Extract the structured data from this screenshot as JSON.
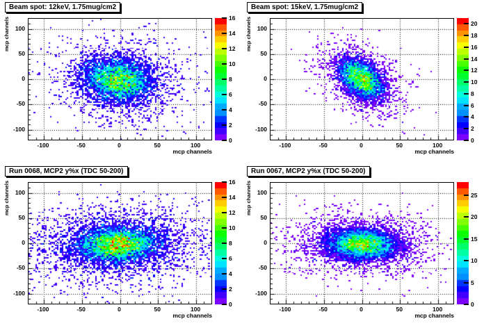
{
  "palette": [
    "#7B00FF",
    "#4100FF",
    "#0600FF",
    "#0034FF",
    "#0090FF",
    "#00AAFF",
    "#00E4FF",
    "#00FFDF",
    "#00FFA4",
    "#00FF6A",
    "#00FF2F",
    "#0BFF00",
    "#46FF00",
    "#81FF00",
    "#BBFF00",
    "#F6FF00",
    "#FFCD00",
    "#FF9300",
    "#FF5800",
    "#FF0000"
  ],
  "grid_color": "#000000",
  "frame_color": "#000000",
  "chart_data": [
    {
      "type": "heatmap",
      "title": "Beam spot: 12keV, 1.75mug/cm2",
      "xlabel": "mcp channels",
      "ylabel": "mcp channels",
      "xlim": [
        -120,
        120
      ],
      "ylim": [
        -120,
        120
      ],
      "x_major_ticks": [
        -100,
        -50,
        0,
        50,
        100
      ],
      "y_major_ticks": [
        -100,
        -50,
        0,
        50,
        100
      ],
      "minor_tick_step": 10,
      "grid": "dotted",
      "legend_position": "right-colorbar",
      "zmin": 0,
      "zmax": 16,
      "colorbar_ticks": [
        0,
        2,
        4,
        6,
        8,
        10,
        12,
        14,
        16
      ],
      "distribution": {
        "center": [
          -2,
          -2
        ],
        "sigma_x": 22,
        "sigma_y": 21,
        "rho": -0.12,
        "n_core": 4200,
        "n_halo": 1500,
        "halo_scale": 2.0,
        "seed": 101
      }
    },
    {
      "type": "heatmap",
      "title": "Beam spot: 15keV, 1.75mug/cm2",
      "xlabel": "mcp channels",
      "ylabel": "mcp channels",
      "xlim": [
        -120,
        120
      ],
      "ylim": [
        -120,
        120
      ],
      "x_major_ticks": [
        -100,
        -50,
        0,
        50,
        100
      ],
      "y_major_ticks": [
        -100,
        -50,
        0,
        50,
        100
      ],
      "minor_tick_step": 10,
      "grid": "dotted",
      "legend_position": "right-colorbar",
      "zmin": 0,
      "zmax": 21,
      "colorbar_ticks": [
        0,
        2,
        4,
        6,
        8,
        10,
        12,
        14,
        16,
        18,
        20
      ],
      "distribution": {
        "center": [
          -1,
          0
        ],
        "sigma_x": 15,
        "sigma_y": 20,
        "rho": -0.42,
        "n_core": 3900,
        "n_halo": 900,
        "halo_scale": 2.0,
        "seed": 202
      }
    },
    {
      "type": "heatmap",
      "title": "Run 0068, MCP2 y%x (TDC 50-200)",
      "xlabel": "mcp channels",
      "ylabel": "mcp channels",
      "xlim": [
        -120,
        120
      ],
      "ylim": [
        -120,
        120
      ],
      "x_major_ticks": [
        -100,
        -50,
        0,
        50,
        100
      ],
      "y_major_ticks": [
        -100,
        -50,
        0,
        50,
        100
      ],
      "minor_tick_step": 10,
      "grid": "dotted",
      "legend_position": "right-colorbar",
      "zmin": 0,
      "zmax": 16,
      "colorbar_ticks": [
        0,
        2,
        4,
        6,
        8,
        10,
        12,
        14,
        16
      ],
      "distribution": {
        "center": [
          -3,
          -3
        ],
        "sigma_x": 26,
        "sigma_y": 17,
        "rho": 0.05,
        "n_core": 5100,
        "n_halo": 2600,
        "halo_scale": 2.3,
        "seed": 303
      }
    },
    {
      "type": "heatmap",
      "title": "Run 0067, MCP2 y%x (TDC 50-200)",
      "xlabel": "mcp channels",
      "ylabel": "mcp channels",
      "xlim": [
        -120,
        120
      ],
      "ylim": [
        -120,
        120
      ],
      "x_major_ticks": [
        -100,
        -50,
        0,
        50,
        100
      ],
      "y_major_ticks": [
        -100,
        -50,
        0,
        50,
        100
      ],
      "minor_tick_step": 10,
      "grid": "dotted",
      "legend_position": "right-colorbar",
      "zmin": 0,
      "zmax": 28,
      "colorbar_ticks": [
        0,
        5,
        10,
        15,
        20,
        25
      ],
      "distribution": {
        "center": [
          0,
          -2
        ],
        "sigma_x": 23,
        "sigma_y": 15,
        "rho": -0.08,
        "n_core": 6300,
        "n_halo": 1700,
        "halo_scale": 2.1,
        "seed": 404
      }
    }
  ]
}
